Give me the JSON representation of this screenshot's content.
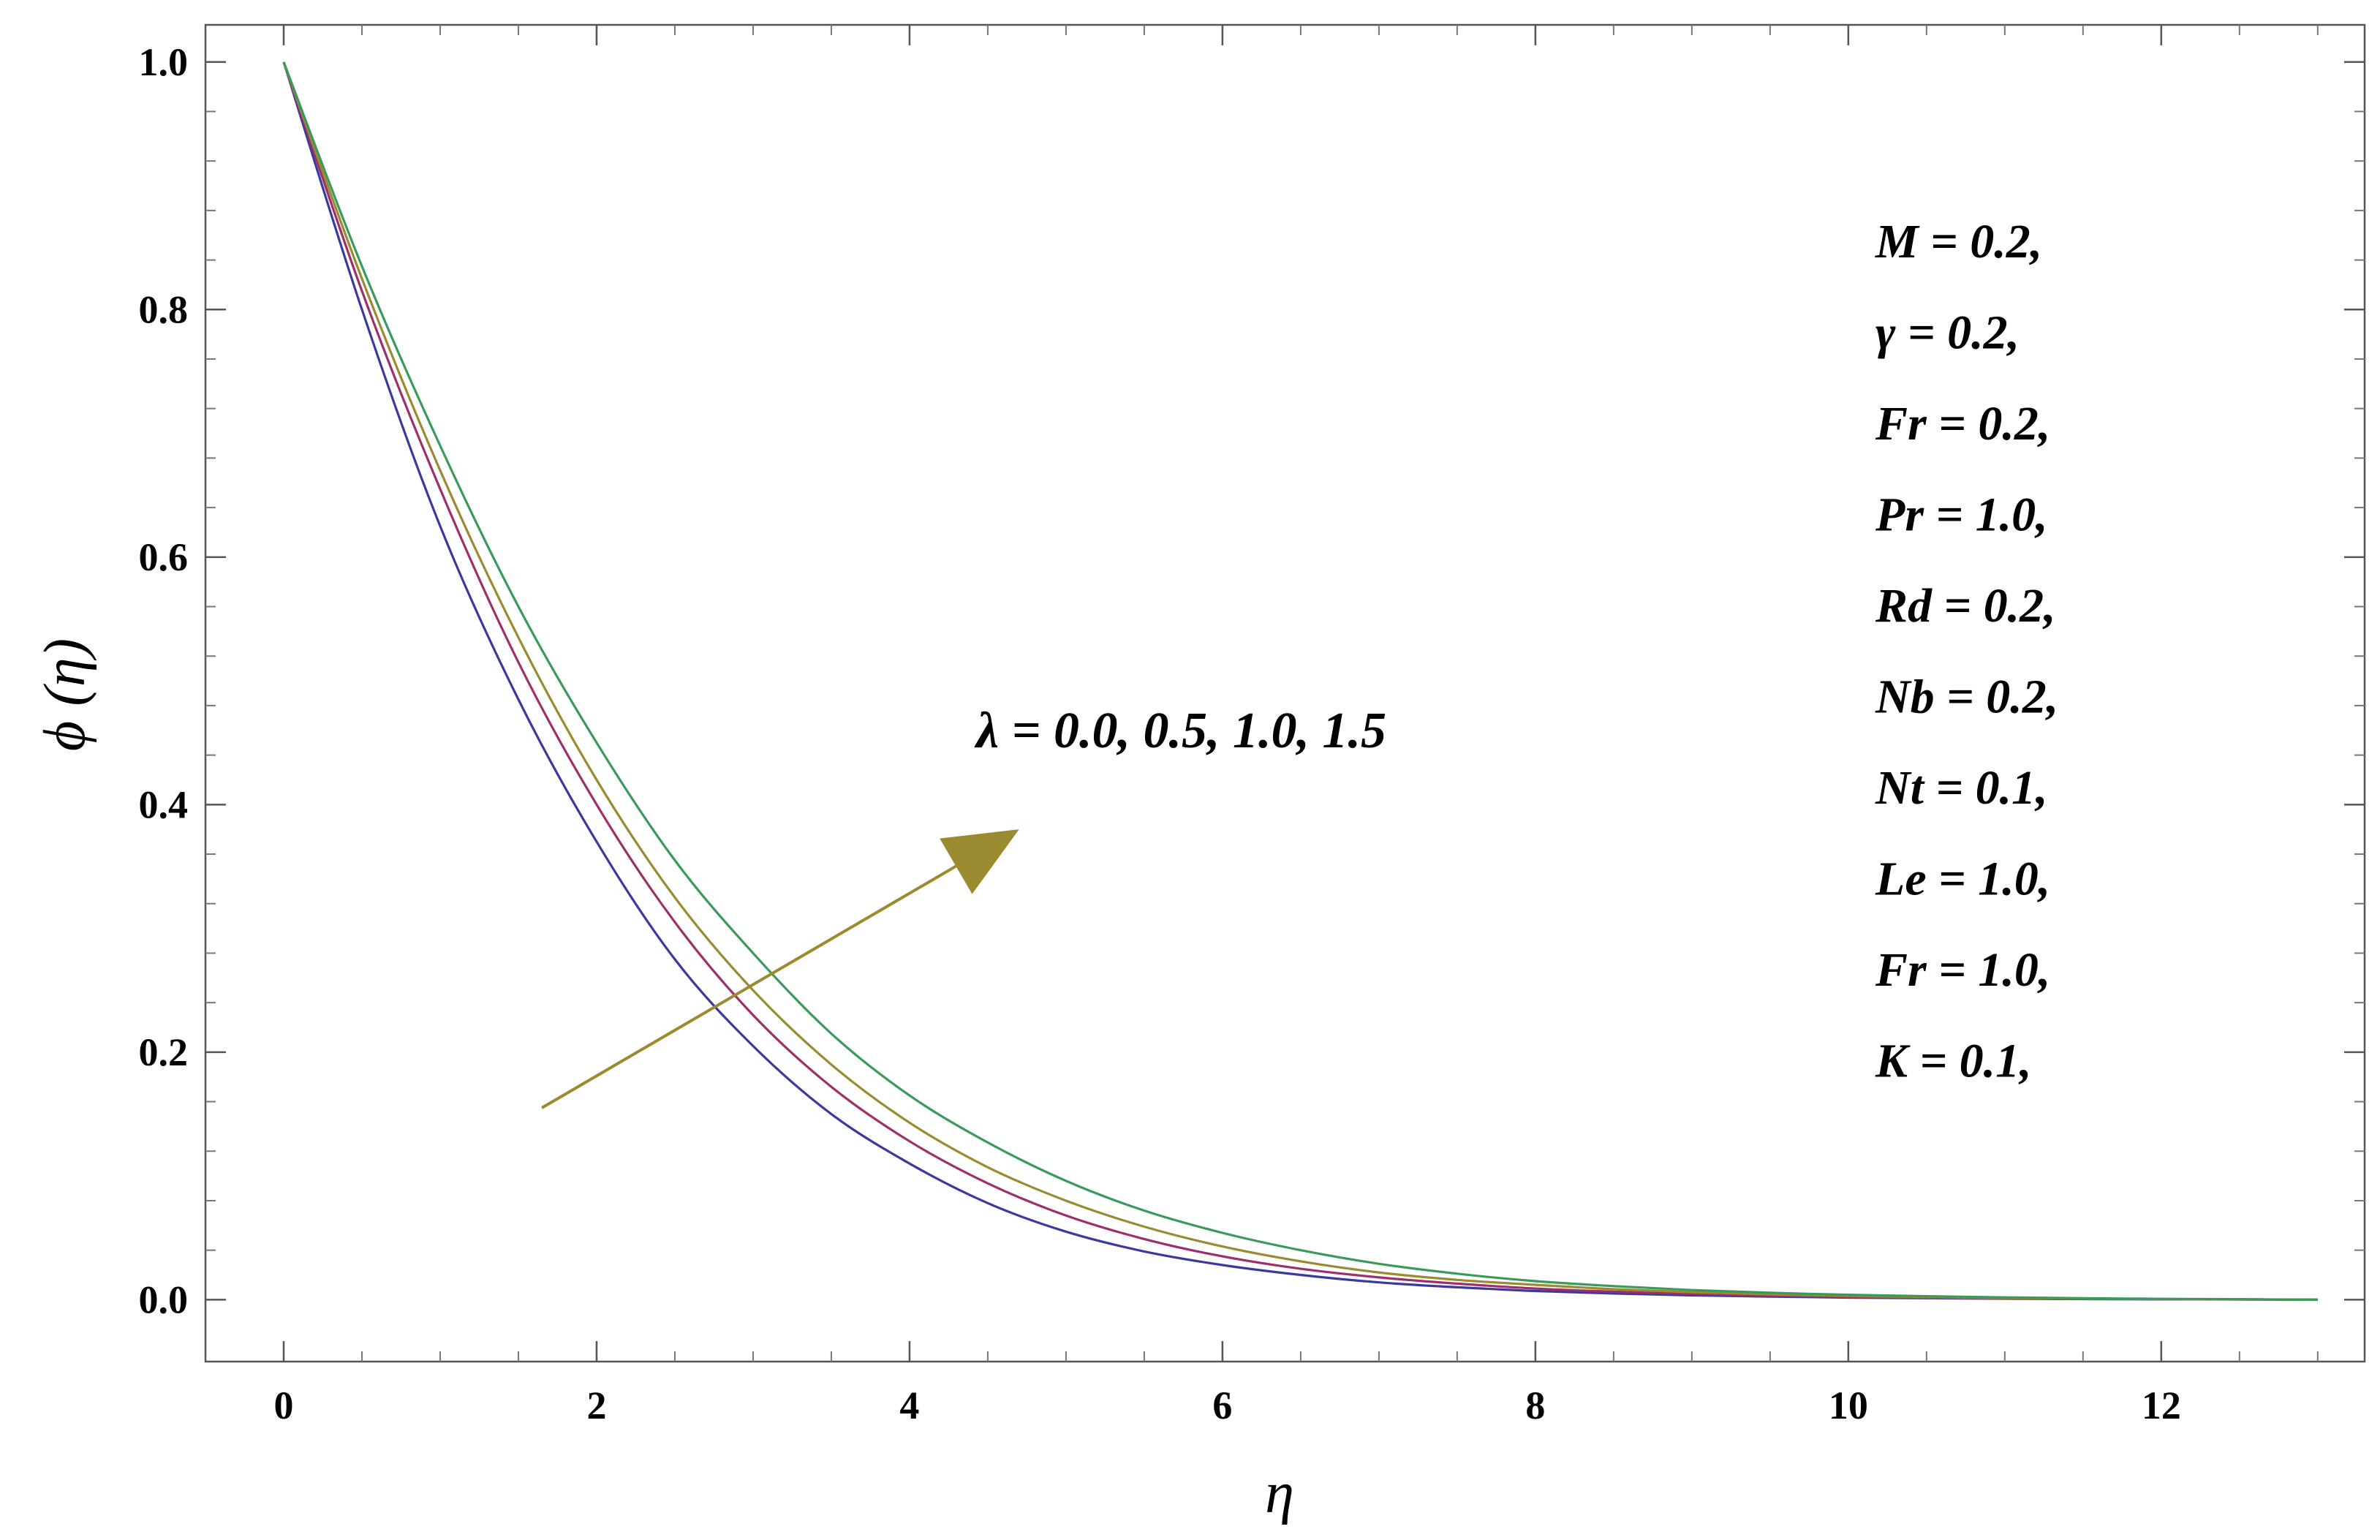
{
  "chart_data": {
    "type": "line",
    "xlabel": "η",
    "ylabel": "ϕ (η)",
    "xlim": [
      -0.5,
      13.3
    ],
    "ylim": [
      -0.05,
      1.03
    ],
    "x_ticks": [
      0,
      2,
      4,
      6,
      8,
      10,
      12
    ],
    "x_tick_labels": [
      "0",
      "2",
      "4",
      "6",
      "8",
      "10",
      "12"
    ],
    "y_ticks": [
      0.0,
      0.2,
      0.4,
      0.6,
      0.8,
      1.0
    ],
    "y_tick_labels": [
      "0.0",
      "0.2",
      "0.4",
      "0.6",
      "0.8",
      "1.0"
    ],
    "grid": false,
    "x": [
      0,
      0.5,
      1,
      1.5,
      2,
      2.5,
      3,
      3.5,
      4,
      4.5,
      5,
      5.5,
      6,
      6.5,
      7,
      7.5,
      8,
      8.5,
      9,
      9.5,
      10,
      10.5,
      11,
      11.5,
      12,
      12.5,
      13
    ],
    "series": [
      {
        "values": [
          1.0,
          0.8,
          0.625,
          0.485,
          0.37,
          0.275,
          0.205,
          0.15,
          0.11,
          0.078,
          0.055,
          0.039,
          0.028,
          0.02,
          0.014,
          0.01,
          0.007,
          0.005,
          0.0035,
          0.0025,
          0.0017,
          0.0012,
          0.0008,
          0.0005,
          0.0003,
          0.0002,
          0.0
        ]
      },
      {
        "values": [
          1.0,
          0.815,
          0.655,
          0.515,
          0.4,
          0.305,
          0.23,
          0.172,
          0.128,
          0.094,
          0.068,
          0.049,
          0.035,
          0.025,
          0.018,
          0.013,
          0.009,
          0.0065,
          0.0046,
          0.0033,
          0.0023,
          0.0016,
          0.0011,
          0.0007,
          0.0004,
          0.0002,
          0.0
        ]
      },
      {
        "values": [
          1.0,
          0.825,
          0.67,
          0.535,
          0.42,
          0.325,
          0.25,
          0.19,
          0.143,
          0.107,
          0.08,
          0.059,
          0.043,
          0.031,
          0.022,
          0.016,
          0.012,
          0.0085,
          0.006,
          0.0043,
          0.003,
          0.0021,
          0.0014,
          0.0009,
          0.0005,
          0.0003,
          0.0
        ]
      },
      {
        "values": [
          1.0,
          0.835,
          0.69,
          0.56,
          0.45,
          0.355,
          0.28,
          0.215,
          0.165,
          0.127,
          0.096,
          0.072,
          0.054,
          0.04,
          0.029,
          0.021,
          0.015,
          0.011,
          0.0078,
          0.0056,
          0.004,
          0.0028,
          0.0019,
          0.0012,
          0.0007,
          0.0004,
          0.0
        ]
      }
    ],
    "series_colors": [
      "#3a3a9e",
      "#9e2f6a",
      "#9a8a30",
      "#3a9a5a"
    ],
    "annotation": {
      "text": "λ =  0.0,  0.5,  1.0,  1.5",
      "arrow_color": "#9a8a30",
      "arrow_from": [
        1.65,
        0.155
      ],
      "arrow_to": [
        4.7,
        0.38
      ]
    },
    "parameters": [
      "M  =  0.2,",
      "γ = 0.2,",
      "Fr = 0.2,",
      "Pr = 1.0,",
      "Rd = 0.2,",
      "Nb = 0.2,",
      "Nt = 0.1,",
      "Le = 1.0,",
      "Fr = 1.0,",
      "K = 0.1,"
    ]
  }
}
